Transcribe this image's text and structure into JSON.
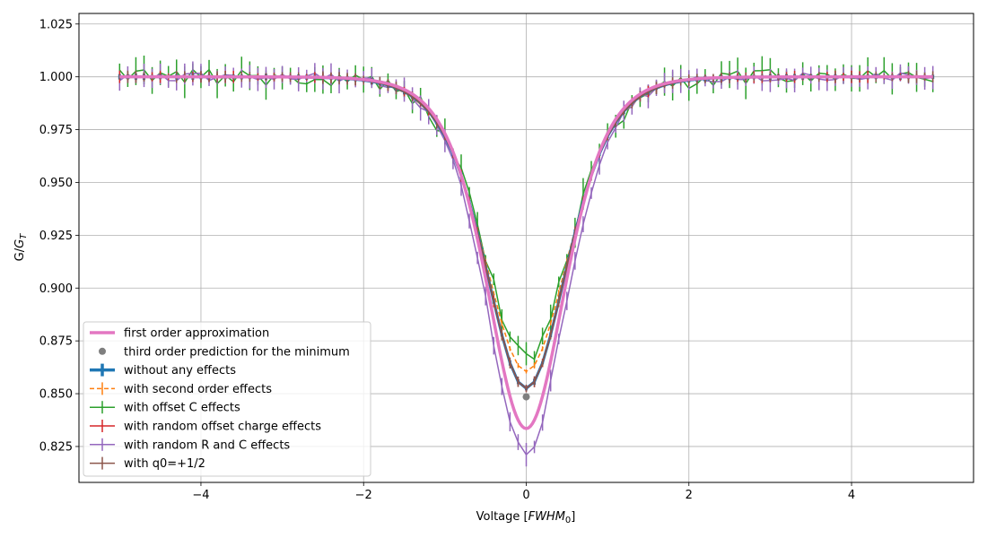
{
  "chart_data": {
    "type": "line",
    "xlabel_main": "Voltage [",
    "xlabel_unit": "FWHM",
    "xlabel_sub": "0",
    "xlabel_close": "]",
    "ylabel_main": "G/",
    "ylabel_unit": "G",
    "ylabel_sub": "T",
    "xlim": [
      -5.5,
      5.5
    ],
    "ylim": [
      0.808,
      1.03
    ],
    "grid": true,
    "legend_position": "lower-left",
    "x_ticks": [
      -4,
      -2,
      0,
      2,
      4
    ],
    "x_tick_labels": [
      "−4",
      "−2",
      "0",
      "2",
      "4"
    ],
    "y_ticks": [
      0.825,
      0.85,
      0.875,
      0.9,
      0.925,
      0.95,
      0.975,
      1.0,
      1.025
    ],
    "y_tick_labels": [
      "0.825",
      "0.850",
      "0.875",
      "0.900",
      "0.925",
      "0.950",
      "0.975",
      "1.000",
      "1.025"
    ],
    "series": [
      {
        "name": "first order approximation",
        "color": "#e377c2",
        "style": "line-thick",
        "min": 0.8335,
        "width": 0.64
      },
      {
        "name": "third order prediction for the minimum",
        "color": "#7f7f7f",
        "style": "marker",
        "x": 0,
        "y": 0.8485
      },
      {
        "name": "without any effects",
        "color": "#1f77b4",
        "style": "errorbar-thick",
        "min": 0.8525,
        "width": 0.68,
        "errors": 0.001,
        "noise": 0
      },
      {
        "name": "with second order effects",
        "color": "#ff7f0e",
        "style": "errorbar-dashed",
        "min": 0.8605,
        "width": 0.7,
        "errors": 0.001,
        "noise": 0
      },
      {
        "name": "with offset C effects",
        "color": "#2ca02c",
        "style": "errorbar",
        "min": 0.8665,
        "width": 0.71,
        "errors": 0.005,
        "noise": 0.004
      },
      {
        "name": "with random offset charge effects",
        "color": "#d62728",
        "style": "errorbar",
        "min": 0.8525,
        "width": 0.68,
        "errors": 0.002,
        "noise": 0
      },
      {
        "name": "with random R and C effects",
        "color": "#9467bd",
        "style": "errorbar",
        "min": 0.8225,
        "width": 0.66,
        "errors": 0.004,
        "noise": 0.002
      },
      {
        "name": "with q0=+1/2",
        "color": "#8c564b",
        "style": "errorbar",
        "min": 0.8525,
        "width": 0.68,
        "errors": 0.002,
        "noise": 0
      }
    ]
  }
}
